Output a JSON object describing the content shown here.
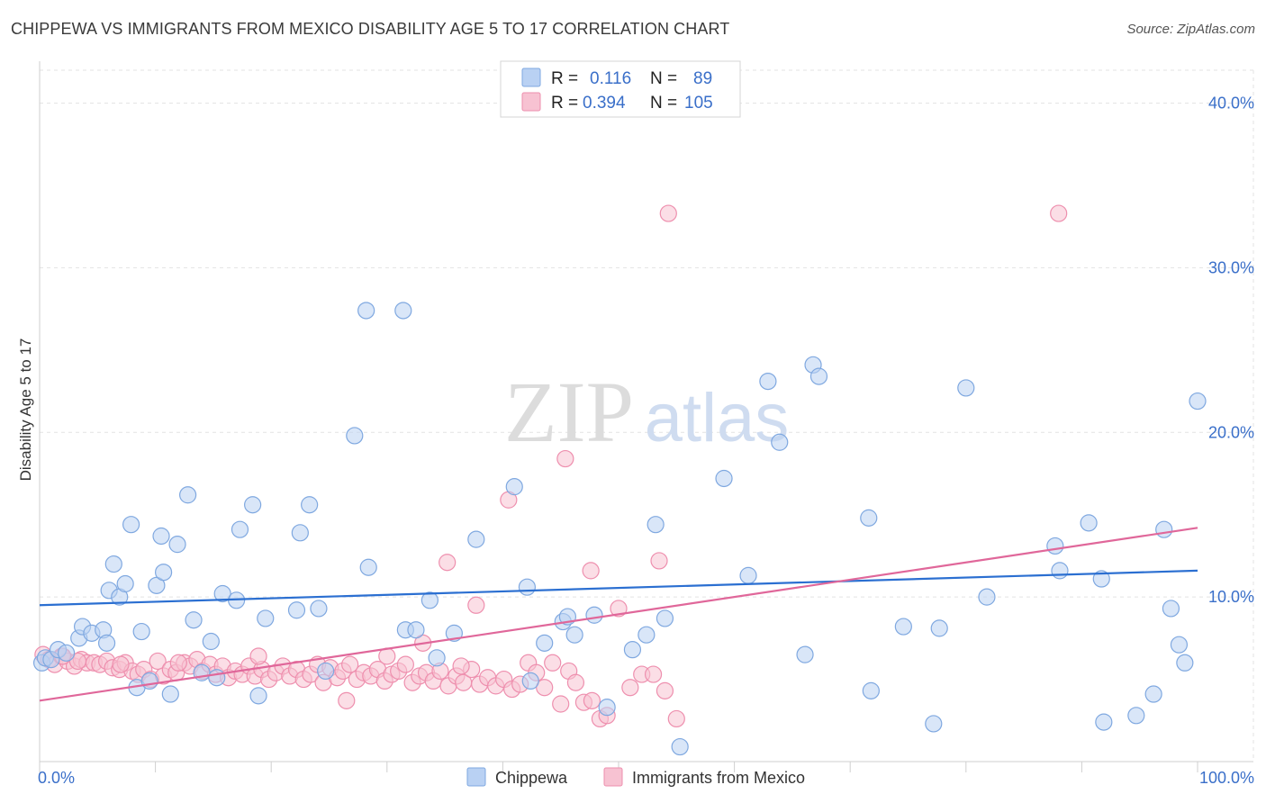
{
  "title": "CHIPPEWA VS IMMIGRANTS FROM MEXICO DISABILITY AGE 5 TO 17 CORRELATION CHART",
  "source": "Source: ZipAtlas.com",
  "watermark": {
    "zip": "ZIP",
    "atlas": "atlas"
  },
  "colors": {
    "chippewa_fill": "#b9d1f3",
    "chippewa_stroke": "#7fa8e0",
    "chippewa_line": "#2b6fd1",
    "mexico_fill": "#f7c2d2",
    "mexico_stroke": "#ee8fae",
    "mexico_line": "#e0679a",
    "grid": "#e3e3e3",
    "tick_label": "#3a6fc9"
  },
  "legend": {
    "rows": [
      {
        "r_label": "R =",
        "r_value": "0.116",
        "n_label": "N =",
        "n_value": "89"
      },
      {
        "r_label": "R =",
        "r_value": "0.394",
        "n_label": "N =",
        "n_value": "105"
      }
    ]
  },
  "bottom_legend": [
    "Chippewa",
    "Immigrants from Mexico"
  ],
  "chart_data": {
    "type": "scatter",
    "title": "CHIPPEWA VS IMMIGRANTS FROM MEXICO DISABILITY AGE 5 TO 17 CORRELATION CHART",
    "xlabel": "",
    "ylabel": "Disability Age 5 to 17",
    "xlim": [
      0,
      100
    ],
    "ylim": [
      0,
      42
    ],
    "x_tick_labels": [
      "0.0%",
      "100.0%"
    ],
    "y_ticks": [
      10,
      20,
      30,
      40
    ],
    "y_tick_labels": [
      "10.0%",
      "20.0%",
      "30.0%",
      "40.0%"
    ],
    "grid": true,
    "legend_position": "top-center",
    "series": [
      {
        "name": "Chippewa",
        "r": 0.116,
        "n": 89,
        "trend": {
          "x": [
            0,
            100
          ],
          "y": [
            9.5,
            11.6
          ]
        },
        "points": [
          [
            0.2,
            6.0
          ],
          [
            0.5,
            6.3
          ],
          [
            1.0,
            6.2
          ],
          [
            1.6,
            6.8
          ],
          [
            2.3,
            6.6
          ],
          [
            3.4,
            7.5
          ],
          [
            3.7,
            8.2
          ],
          [
            4.5,
            7.8
          ],
          [
            5.5,
            8.0
          ],
          [
            5.8,
            7.2
          ],
          [
            6.0,
            10.4
          ],
          [
            6.4,
            12.0
          ],
          [
            6.9,
            10.0
          ],
          [
            7.4,
            10.8
          ],
          [
            7.9,
            14.4
          ],
          [
            8.4,
            4.5
          ],
          [
            8.8,
            7.9
          ],
          [
            9.5,
            4.9
          ],
          [
            10.1,
            10.7
          ],
          [
            10.5,
            13.7
          ],
          [
            10.7,
            11.5
          ],
          [
            11.3,
            4.1
          ],
          [
            11.9,
            13.2
          ],
          [
            12.8,
            16.2
          ],
          [
            13.3,
            8.6
          ],
          [
            14.0,
            5.4
          ],
          [
            14.8,
            7.3
          ],
          [
            15.3,
            5.1
          ],
          [
            15.8,
            10.2
          ],
          [
            17.0,
            9.8
          ],
          [
            17.3,
            14.1
          ],
          [
            18.4,
            15.6
          ],
          [
            18.9,
            4.0
          ],
          [
            19.5,
            8.7
          ],
          [
            22.2,
            9.2
          ],
          [
            22.5,
            13.9
          ],
          [
            23.3,
            15.6
          ],
          [
            24.1,
            9.3
          ],
          [
            24.7,
            5.5
          ],
          [
            27.2,
            19.8
          ],
          [
            28.2,
            27.4
          ],
          [
            28.4,
            11.8
          ],
          [
            31.4,
            27.4
          ],
          [
            31.6,
            8.0
          ],
          [
            32.5,
            8.0
          ],
          [
            33.7,
            9.8
          ],
          [
            34.3,
            6.3
          ],
          [
            35.8,
            7.8
          ],
          [
            37.7,
            13.5
          ],
          [
            41.0,
            16.7
          ],
          [
            42.1,
            10.6
          ],
          [
            42.4,
            4.9
          ],
          [
            43.6,
            7.2
          ],
          [
            45.2,
            8.5
          ],
          [
            45.6,
            8.8
          ],
          [
            46.2,
            7.7
          ],
          [
            47.9,
            8.9
          ],
          [
            49.0,
            3.3
          ],
          [
            51.2,
            6.8
          ],
          [
            52.4,
            7.7
          ],
          [
            53.2,
            14.4
          ],
          [
            54.0,
            8.7
          ],
          [
            55.3,
            0.9
          ],
          [
            59.1,
            17.2
          ],
          [
            61.2,
            11.3
          ],
          [
            62.9,
            23.1
          ],
          [
            63.9,
            19.4
          ],
          [
            66.1,
            6.5
          ],
          [
            66.8,
            24.1
          ],
          [
            67.3,
            23.4
          ],
          [
            71.6,
            14.8
          ],
          [
            71.8,
            4.3
          ],
          [
            74.6,
            8.2
          ],
          [
            77.2,
            2.3
          ],
          [
            77.7,
            8.1
          ],
          [
            80.0,
            22.7
          ],
          [
            81.8,
            10.0
          ],
          [
            87.7,
            13.1
          ],
          [
            88.1,
            11.6
          ],
          [
            90.6,
            14.5
          ],
          [
            91.7,
            11.1
          ],
          [
            91.9,
            2.4
          ],
          [
            94.7,
            2.8
          ],
          [
            96.2,
            4.1
          ],
          [
            97.1,
            14.1
          ],
          [
            97.7,
            9.3
          ],
          [
            98.4,
            7.1
          ],
          [
            98.9,
            6.0
          ],
          [
            100.0,
            21.9
          ]
        ]
      },
      {
        "name": "Immigrants from Mexico",
        "r": 0.394,
        "n": 105,
        "trend": {
          "x": [
            0,
            100
          ],
          "y": [
            3.7,
            14.2
          ]
        },
        "points": [
          [
            0.3,
            6.5
          ],
          [
            0.8,
            6.2
          ],
          [
            1.3,
            5.9
          ],
          [
            1.9,
            6.4
          ],
          [
            2.4,
            6.1
          ],
          [
            3.0,
            5.8
          ],
          [
            3.6,
            6.2
          ],
          [
            4.1,
            6.0
          ],
          [
            4.7,
            6.0
          ],
          [
            5.2,
            5.9
          ],
          [
            5.8,
            6.1
          ],
          [
            6.3,
            5.7
          ],
          [
            6.9,
            5.6
          ],
          [
            7.4,
            6.0
          ],
          [
            8.0,
            5.5
          ],
          [
            8.5,
            5.3
          ],
          [
            9.0,
            5.6
          ],
          [
            9.6,
            5.0
          ],
          [
            10.2,
            6.1
          ],
          [
            10.7,
            5.2
          ],
          [
            11.3,
            5.6
          ],
          [
            11.8,
            5.4
          ],
          [
            12.5,
            6.0
          ],
          [
            13.0,
            5.8
          ],
          [
            13.6,
            6.2
          ],
          [
            14.1,
            5.5
          ],
          [
            14.7,
            5.9
          ],
          [
            15.2,
            5.3
          ],
          [
            15.8,
            5.8
          ],
          [
            16.3,
            5.1
          ],
          [
            16.9,
            5.5
          ],
          [
            17.5,
            5.3
          ],
          [
            18.1,
            5.8
          ],
          [
            18.6,
            5.2
          ],
          [
            19.2,
            5.6
          ],
          [
            19.8,
            5.0
          ],
          [
            20.4,
            5.4
          ],
          [
            21.0,
            5.8
          ],
          [
            21.6,
            5.2
          ],
          [
            22.2,
            5.6
          ],
          [
            22.8,
            5.0
          ],
          [
            23.4,
            5.3
          ],
          [
            24.0,
            5.9
          ],
          [
            24.5,
            4.8
          ],
          [
            25.1,
            5.7
          ],
          [
            25.7,
            5.1
          ],
          [
            26.2,
            5.5
          ],
          [
            26.8,
            5.9
          ],
          [
            27.4,
            5.0
          ],
          [
            28.0,
            5.4
          ],
          [
            28.6,
            5.2
          ],
          [
            29.2,
            5.6
          ],
          [
            29.8,
            4.9
          ],
          [
            30.4,
            5.3
          ],
          [
            31.0,
            5.5
          ],
          [
            31.6,
            5.9
          ],
          [
            32.2,
            4.8
          ],
          [
            32.8,
            5.2
          ],
          [
            33.4,
            5.4
          ],
          [
            34.0,
            4.9
          ],
          [
            34.6,
            5.5
          ],
          [
            35.3,
            4.6
          ],
          [
            36.0,
            5.2
          ],
          [
            36.6,
            4.8
          ],
          [
            37.3,
            5.6
          ],
          [
            38.0,
            4.7
          ],
          [
            38.7,
            5.1
          ],
          [
            39.4,
            4.6
          ],
          [
            40.1,
            5.0
          ],
          [
            40.8,
            4.4
          ],
          [
            41.5,
            4.7
          ],
          [
            42.2,
            6.0
          ],
          [
            42.9,
            5.4
          ],
          [
            43.6,
            4.5
          ],
          [
            44.3,
            6.0
          ],
          [
            45.0,
            3.5
          ],
          [
            45.7,
            5.5
          ],
          [
            46.3,
            4.8
          ],
          [
            47.0,
            3.6
          ],
          [
            47.7,
            3.7
          ],
          [
            48.4,
            2.6
          ],
          [
            49.0,
            2.8
          ],
          [
            50.0,
            9.3
          ],
          [
            51.0,
            4.5
          ],
          [
            52.0,
            5.3
          ],
          [
            53.0,
            5.3
          ],
          [
            54.0,
            4.3
          ],
          [
            55.0,
            2.6
          ],
          [
            2.0,
            6.4
          ],
          [
            3.3,
            6.1
          ],
          [
            7.0,
            5.9
          ],
          [
            12.0,
            6.0
          ],
          [
            18.9,
            6.4
          ],
          [
            26.5,
            3.7
          ],
          [
            30.0,
            6.4
          ],
          [
            33.1,
            7.2
          ],
          [
            35.2,
            12.1
          ],
          [
            36.4,
            5.8
          ],
          [
            37.7,
            9.5
          ],
          [
            40.5,
            15.9
          ],
          [
            45.4,
            18.4
          ],
          [
            47.6,
            11.6
          ],
          [
            53.5,
            12.2
          ],
          [
            54.3,
            33.3
          ],
          [
            88.0,
            33.3
          ]
        ]
      }
    ]
  }
}
